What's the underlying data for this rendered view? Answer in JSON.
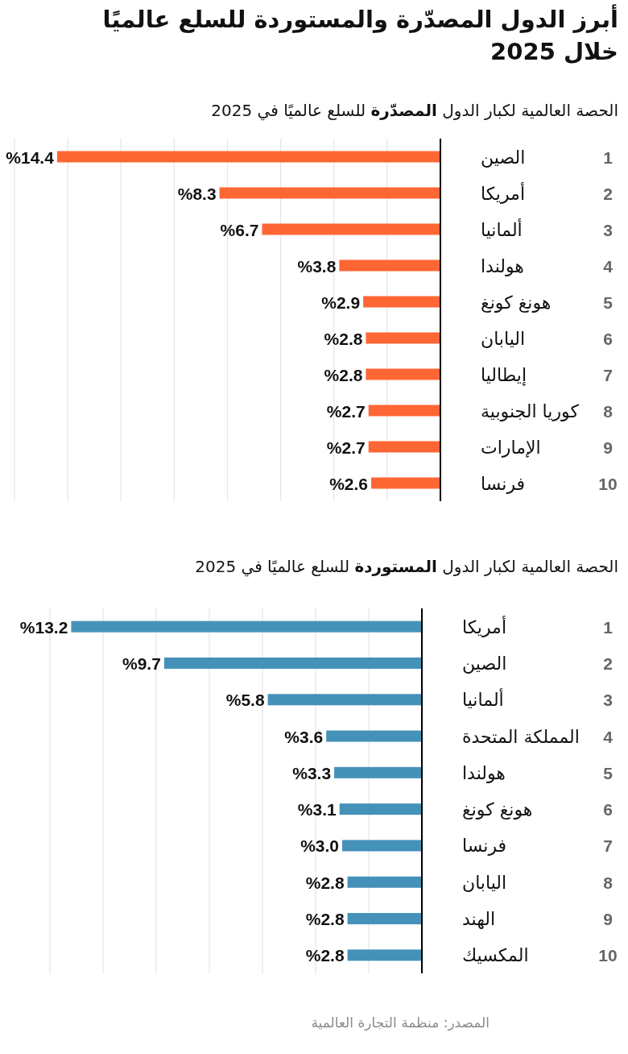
{
  "chart_data": [
    {
      "type": "bar",
      "orientation": "horizontal",
      "title": "أبرز الدول المصدّرة والمستوردة للسلع عالميًا خلال 2025",
      "subtitle": "الحصة العالمية لكبار الدول **المصدّرة** للسلع عالميًا في 2025",
      "categories": [
        "الصين",
        "أمريكا",
        "ألمانيا",
        "هولندا",
        "هونغ كونغ",
        "اليابان",
        "إيطاليا",
        "كوريا الجنوبية",
        "الإمارات",
        "فرنسا"
      ],
      "values": [
        14.4,
        8.3,
        6.7,
        3.8,
        2.9,
        2.8,
        2.8,
        2.7,
        2.7,
        2.6
      ],
      "value_labels": [
        "%14.4",
        "%8.3",
        "%6.7",
        "%3.8",
        "%2.9",
        "%2.8",
        "%2.8",
        "%2.7",
        "%2.7",
        "%2.6"
      ],
      "color": "#fe6634",
      "xlim": [
        16,
        0
      ],
      "xticks": [
        {
          "value": 2,
          "label": null
        },
        {
          "value": 4,
          "label": null
        },
        {
          "value": 6,
          "label": null
        },
        {
          "value": 8,
          "label": null
        },
        {
          "value": 10,
          "label": null
        },
        {
          "value": 12,
          "label": null
        },
        {
          "value": 14,
          "label": null
        },
        {
          "value": 16,
          "label": null
        }
      ],
      "grid": "x",
      "tick_labels": "y",
      "annotations": [
        "1",
        "2",
        "3",
        "4",
        "5",
        "6",
        "7",
        "8",
        "9",
        "10"
      ]
    },
    {
      "type": "bar",
      "orientation": "horizontal",
      "title": "الحصة العالمية لكبار الدول **المستوردة** للسلع عالميًا في 2025",
      "categories": [
        "أمريكا",
        "الصين",
        "ألمانيا",
        "المملكة المتحدة",
        "هولندا",
        "هونغ كونغ",
        "فرنسا",
        "اليابان",
        "الهند",
        "المكسيك"
      ],
      "values": [
        13.2,
        9.7,
        5.8,
        3.6,
        3.3,
        3.1,
        3.0,
        2.8,
        2.8,
        2.8
      ],
      "value_labels": [
        "%13.2",
        "%9.7",
        "%5.8",
        "%3.6",
        "%3.3",
        "%3.1",
        "%3.0",
        "%2.8",
        "%2.8",
        "%2.8"
      ],
      "color": "#4592b9",
      "xlim": [
        14,
        0
      ],
      "xticks": [
        {
          "value": 2,
          "label": null
        },
        {
          "value": 4,
          "label": null
        },
        {
          "value": 6,
          "label": null
        },
        {
          "value": 8,
          "label": null
        },
        {
          "value": 10,
          "label": null
        },
        {
          "value": 12,
          "label": null
        },
        {
          "value": 14,
          "label": null
        }
      ],
      "grid": "x",
      "tick_labels": "y",
      "annotations": [
        "1",
        "2",
        "3",
        "4",
        "5",
        "6",
        "7",
        "8",
        "9",
        "10",
        "المصدر: منظمة التجارة العالمية"
      ]
    }
  ]
}
